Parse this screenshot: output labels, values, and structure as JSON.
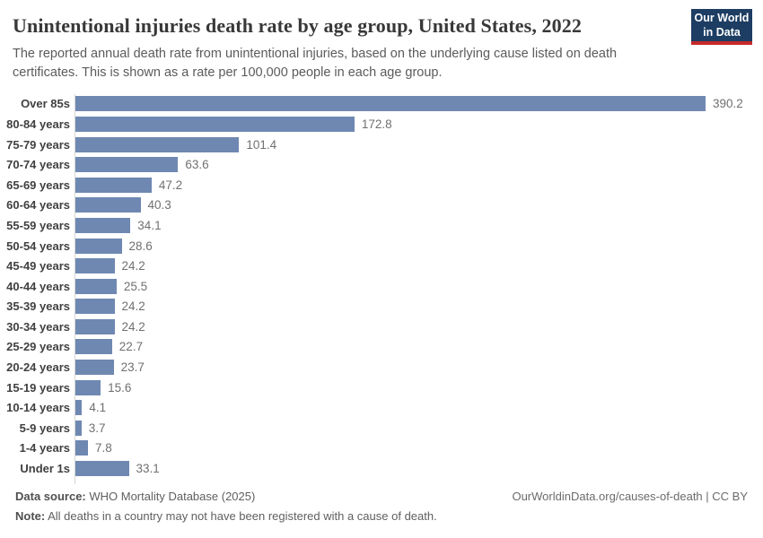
{
  "header": {
    "title": "Unintentional injuries death rate by age group, United States, 2022",
    "subtitle": "The reported annual death rate from unintentional injuries, based on the underlying cause listed on death certificates. This is shown as a rate per 100,000 people in each age group.",
    "logo": {
      "line1": "Our World",
      "line2": "in Data"
    }
  },
  "chart_data": {
    "type": "bar",
    "orientation": "horizontal",
    "title": "Unintentional injuries death rate by age group, United States, 2022",
    "categories": [
      "Over 85s",
      "80-84 years",
      "75-79 years",
      "70-74 years",
      "65-69 years",
      "60-64 years",
      "55-59 years",
      "50-54 years",
      "45-49 years",
      "40-44 years",
      "35-39 years",
      "30-34 years",
      "25-29 years",
      "20-24 years",
      "15-19 years",
      "10-14 years",
      "5-9 years",
      "1-4 years",
      "Under 1s"
    ],
    "values": [
      390.2,
      172.8,
      101.4,
      63.6,
      47.2,
      40.3,
      34.1,
      28.6,
      24.2,
      25.5,
      24.2,
      24.2,
      22.7,
      23.7,
      15.6,
      4.1,
      3.7,
      7.8,
      33.1
    ],
    "value_labels": [
      "390.2",
      "172.8",
      "101.4",
      "63.6",
      "47.2",
      "40.3",
      "34.1",
      "28.6",
      "24.2",
      "25.5",
      "24.2",
      "24.2",
      "22.7",
      "23.7",
      "15.6",
      "4.1",
      "3.7",
      "7.8",
      "33.1"
    ],
    "xlabel": "",
    "ylabel": "",
    "xlim": [
      0,
      400
    ],
    "grid": false,
    "legend": false,
    "bar_color": "#6f88b2",
    "unit": "deaths per 100,000 people"
  },
  "footer": {
    "datasource_label": "Data source:",
    "datasource_text": " WHO Mortality Database (2025)",
    "note_label": "Note:",
    "note_text": " All deaths in a country may not have been registered with a cause of death.",
    "link": "OurWorldinData.org/causes-of-death | CC BY"
  },
  "colors": {
    "bar": "#6f88b2",
    "title": "#383838",
    "subtitle": "#5b5b5b",
    "axis_line": "#d6d6d6",
    "logo_background": "#1d3d63",
    "logo_accent": "#c5292a"
  }
}
